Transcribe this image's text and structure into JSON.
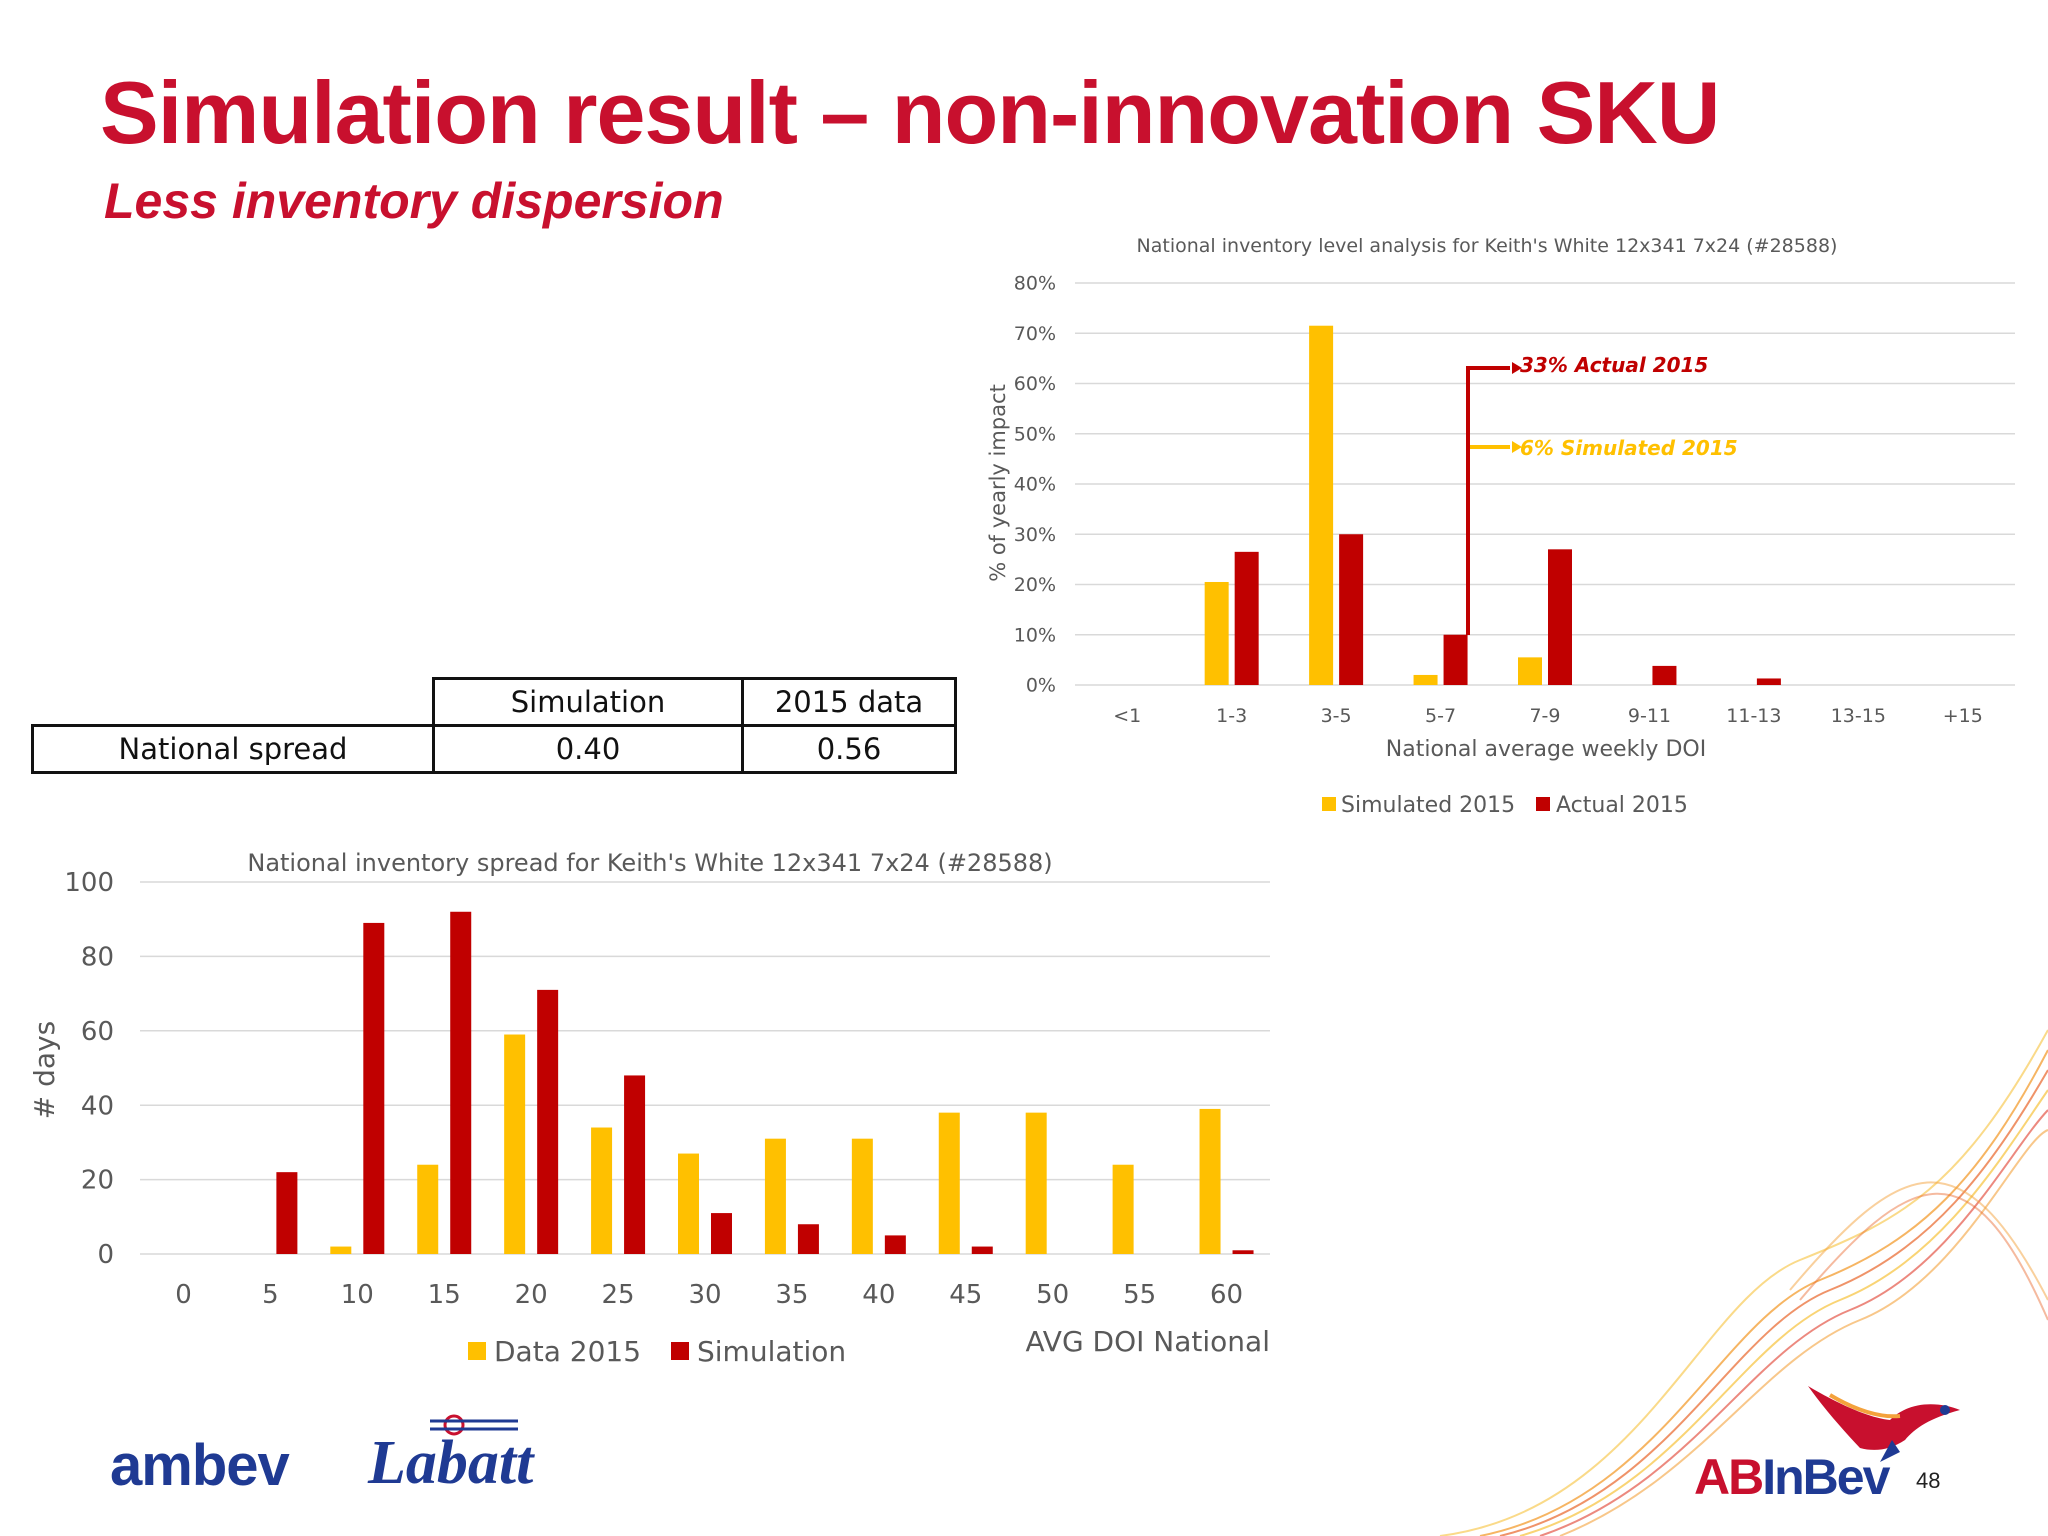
{
  "slide": {
    "title": "Simulation result – non-innovation SKU",
    "subtitle": "Less inventory dispersion",
    "page_number": "48"
  },
  "table": {
    "headers": [
      "",
      "Simulation",
      "2015 data"
    ],
    "rows": [
      {
        "label": "National spread",
        "simulation": "0.40",
        "data_2015": "0.56"
      }
    ]
  },
  "logos": {
    "ambev": "ambev",
    "labatt": "Labatt",
    "abinbev_prefix": "AB",
    "abinbev_rest": "InBev"
  },
  "colors": {
    "brand_red": "#c8102e",
    "series_yellow": "#ffc000",
    "series_red": "#c00000",
    "grid": "#d9d9d9",
    "axis_text": "#595959"
  },
  "chart_data": [
    {
      "type": "bar",
      "title": "National inventory level analysis for Keith's White 12x341 7x24 (#28588)",
      "xlabel": "National average weekly DOI",
      "ylabel": "% of yearly impact",
      "categories": [
        "<1",
        "1-3",
        "3-5",
        "5-7",
        "7-9",
        "9-11",
        "11-13",
        "13-15",
        "+15"
      ],
      "ylim": [
        0,
        80
      ],
      "yticks": [
        "0%",
        "10%",
        "20%",
        "30%",
        "40%",
        "50%",
        "60%",
        "70%",
        "80%"
      ],
      "grid": true,
      "legend_position": "bottom",
      "series": [
        {
          "name": "Simulated 2015",
          "color": "#ffc000",
          "values": [
            0,
            20.5,
            71.5,
            2,
            5.5,
            0,
            0,
            0,
            0
          ]
        },
        {
          "name": "Actual 2015",
          "color": "#c00000",
          "values": [
            0,
            26.5,
            30,
            10,
            27,
            3.8,
            1.3,
            0,
            0
          ]
        }
      ],
      "annotations": [
        {
          "text": "33% Actual 2015",
          "color": "#c00000"
        },
        {
          "text": "6% Simulated 2015",
          "color": "#ffc000"
        }
      ]
    },
    {
      "type": "bar",
      "title": "National inventory spread for Keith's White 12x341 7x24 (#28588)",
      "xlabel": "AVG DOI National",
      "ylabel": "# days",
      "categories": [
        "0",
        "5",
        "10",
        "15",
        "20",
        "25",
        "30",
        "35",
        "40",
        "45",
        "50",
        "55",
        "60"
      ],
      "ylim": [
        0,
        100
      ],
      "yticks": [
        "0",
        "20",
        "40",
        "60",
        "80",
        "100"
      ],
      "grid": true,
      "legend_position": "bottom",
      "series": [
        {
          "name": "Data 2015",
          "color": "#ffc000",
          "values": [
            0,
            0,
            2,
            24,
            59,
            34,
            27,
            31,
            31,
            38,
            38,
            24,
            39
          ]
        },
        {
          "name": "Simulation",
          "color": "#c00000",
          "values": [
            0,
            22,
            89,
            92,
            71,
            48,
            11,
            8,
            5,
            2,
            0,
            0,
            1
          ]
        }
      ]
    }
  ]
}
